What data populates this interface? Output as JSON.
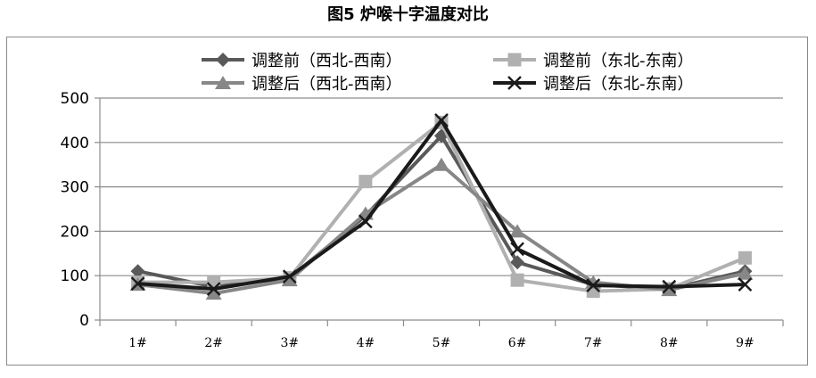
{
  "title": "图5 炉喉十字温度对比",
  "chart_data": {
    "type": "line",
    "title": "图5 炉喉十字温度对比",
    "categories": [
      "1#",
      "2#",
      "3#",
      "4#",
      "5#",
      "6#",
      "7#",
      "8#",
      "9#"
    ],
    "ylim": [
      0,
      500
    ],
    "yticks": [
      0,
      100,
      200,
      300,
      400,
      500
    ],
    "grid": true,
    "legend_position": "top",
    "series": [
      {
        "name": "调整前（西北-西南）",
        "color": "#595959",
        "marker": "diamond",
        "values": [
          110,
          75,
          95,
          235,
          415,
          130,
          80,
          70,
          110
        ]
      },
      {
        "name": "调整前（东北-东南）",
        "color": "#b0b0b0",
        "marker": "square",
        "values": [
          85,
          85,
          95,
          312,
          445,
          90,
          65,
          70,
          140
        ]
      },
      {
        "name": "调整后（西北-西南）",
        "color": "#878787",
        "marker": "triangle",
        "values": [
          80,
          60,
          90,
          240,
          350,
          200,
          85,
          68,
          105
        ]
      },
      {
        "name": "调整后（东北-东南）",
        "color": "#1a1a1a",
        "marker": "x",
        "values": [
          82,
          70,
          98,
          222,
          450,
          160,
          78,
          75,
          80
        ]
      }
    ]
  }
}
